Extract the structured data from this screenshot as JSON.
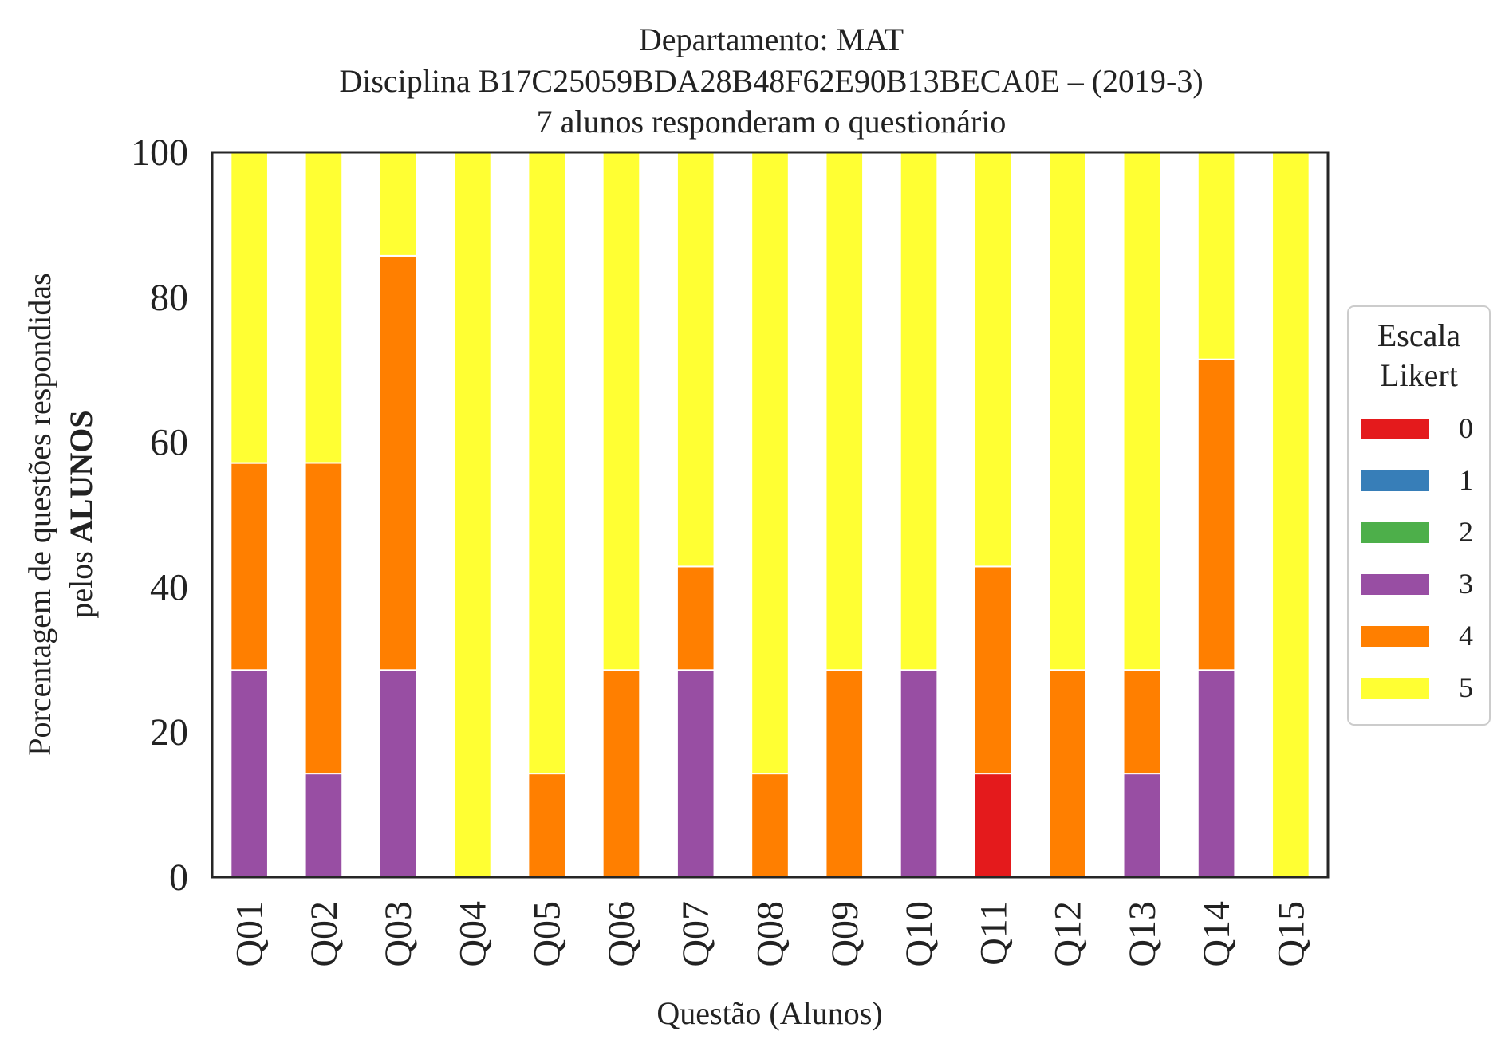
{
  "chart_data": {
    "type": "bar",
    "stacked": true,
    "title_lines": [
      "Departamento: MAT",
      "Disciplina B17C25059BDA28B48F62E90B13BECA0E – (2019-3)",
      "7 alunos responderam o questionário"
    ],
    "xlabel": "Questão (Alunos)",
    "ylabel_line1": "Porcentagem de questões respondidas",
    "ylabel_line2_prefix": "pelos ",
    "ylabel_line2_bold": "ALUNOS",
    "ylim": [
      0,
      100
    ],
    "yticks": [
      "0",
      "20",
      "40",
      "60",
      "80",
      "100"
    ],
    "categories": [
      "Q01",
      "Q02",
      "Q03",
      "Q04",
      "Q05",
      "Q06",
      "Q07",
      "Q08",
      "Q09",
      "Q10",
      "Q11",
      "Q12",
      "Q13",
      "Q14",
      "Q15"
    ],
    "legend": {
      "title_line1": "Escala",
      "title_line2": "Likert",
      "placement": "right",
      "items": [
        "0",
        "1",
        "2",
        "3",
        "4",
        "5"
      ]
    },
    "series": [
      {
        "name": "0",
        "color": "#e41a1c",
        "values": [
          0,
          0,
          0,
          0,
          0,
          0,
          0,
          0,
          0,
          0,
          14.29,
          0,
          0,
          0,
          0
        ]
      },
      {
        "name": "1",
        "color": "#377eb8",
        "values": [
          0,
          0,
          0,
          0,
          0,
          0,
          0,
          0,
          0,
          0,
          0,
          0,
          0,
          0,
          0
        ]
      },
      {
        "name": "2",
        "color": "#4daf4a",
        "values": [
          0,
          0,
          0,
          0,
          0,
          0,
          0,
          0,
          0,
          0,
          0,
          0,
          0,
          0,
          0
        ]
      },
      {
        "name": "3",
        "color": "#984ea3",
        "values": [
          28.57,
          14.29,
          28.57,
          0,
          0,
          0,
          28.57,
          0,
          0,
          28.57,
          0,
          0,
          14.29,
          28.57,
          0
        ]
      },
      {
        "name": "4",
        "color": "#ff7f00",
        "values": [
          28.57,
          42.86,
          57.14,
          0,
          14.29,
          28.57,
          14.29,
          14.29,
          28.57,
          0,
          28.57,
          28.57,
          14.29,
          42.86,
          0
        ]
      },
      {
        "name": "5",
        "color": "#ffff33",
        "values": [
          42.86,
          42.86,
          14.29,
          100,
          85.71,
          71.43,
          57.14,
          85.71,
          71.43,
          71.43,
          57.14,
          71.43,
          71.43,
          28.57,
          100
        ]
      }
    ]
  }
}
